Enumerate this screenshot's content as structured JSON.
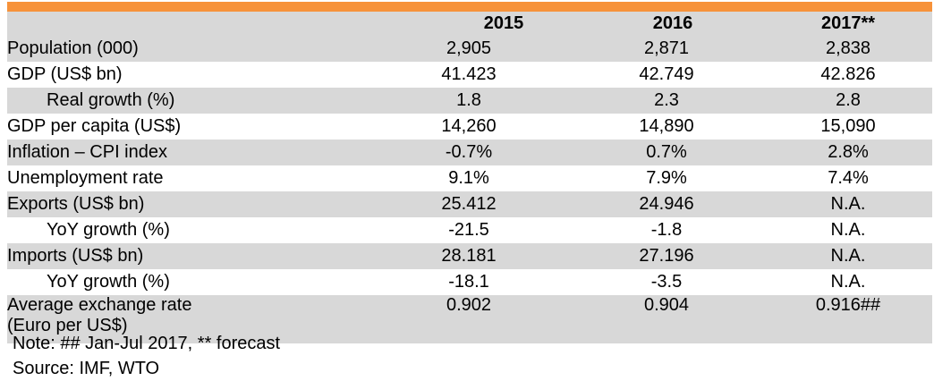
{
  "table": {
    "headers": [
      "",
      "2015",
      "2016",
      "2017**"
    ],
    "rows": [
      {
        "label": "Population (000)",
        "values": [
          "2,905",
          "2,871",
          "2,838"
        ]
      },
      {
        "label": "GDP (US$ bn)",
        "values": [
          "41.423",
          "42.749",
          "42.826"
        ]
      },
      {
        "label": "Real growth (%)",
        "values": [
          "1.8",
          "2.3",
          "2.8"
        ]
      },
      {
        "label": "GDP per capita (US$)",
        "values": [
          "14,260",
          "14,890",
          "15,090"
        ]
      },
      {
        "label": "Inflation – CPI index",
        "values": [
          "-0.7%",
          "0.7%",
          "2.8%"
        ]
      },
      {
        "label": "Unemployment rate",
        "values": [
          "9.1%",
          "7.9%",
          "7.4%"
        ]
      },
      {
        "label": "Exports (US$ bn)",
        "values": [
          "25.412",
          "24.946",
          "N.A."
        ]
      },
      {
        "label": "YoY growth (%)",
        "values": [
          "-21.5",
          "-1.8",
          "N.A."
        ]
      },
      {
        "label": "Imports (US$ bn)",
        "values": [
          "28.181",
          "27.196",
          "N.A."
        ]
      },
      {
        "label": "YoY growth (%)",
        "values": [
          "-18.1",
          "-3.5",
          "N.A."
        ]
      },
      {
        "label": "Average exchange rate",
        "label_line2": "(Euro per US$)",
        "values": [
          "0.902",
          "0.904",
          "0.916##"
        ]
      }
    ]
  },
  "notes": {
    "note": "Note: ## Jan-Jul 2017, ** forecast",
    "source": "Source: IMF, WTO"
  },
  "colors": {
    "accent_bar": "#f7923a",
    "row_shade": "#d8d8d8"
  }
}
